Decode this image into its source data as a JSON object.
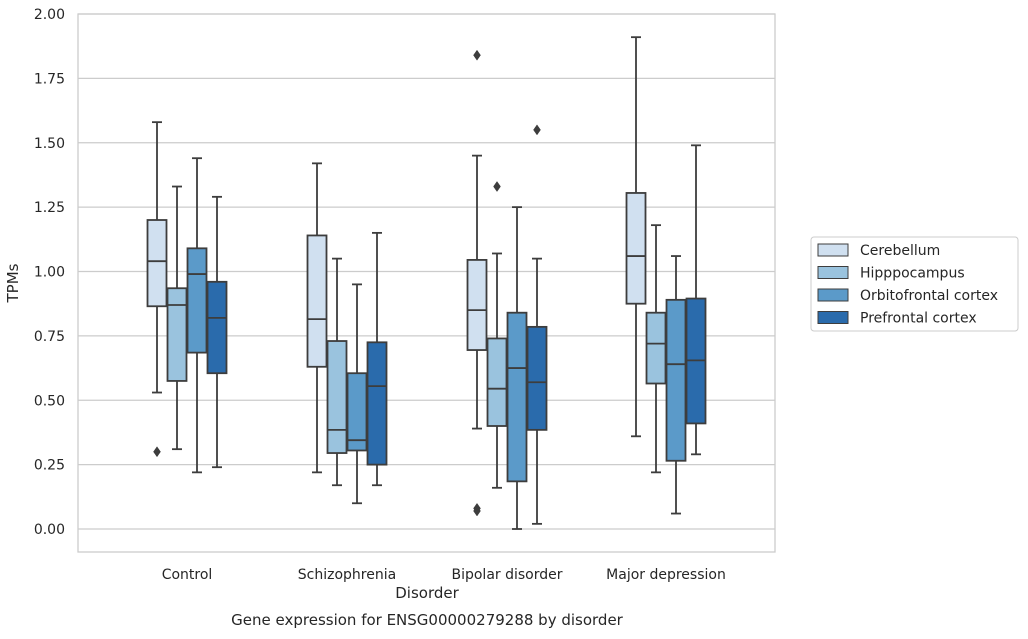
{
  "chart_data": {
    "type": "box",
    "xlabel": "Disorder",
    "ylabel": "TPMs",
    "caption": "Gene expression for ENSG00000279288 by disorder",
    "ylim": [
      -0.09,
      2.01
    ],
    "yticks": [
      0.0,
      0.25,
      0.5,
      0.75,
      1.0,
      1.25,
      1.5,
      1.75,
      2.0
    ],
    "ytick_labels": [
      "0.00",
      "0.25",
      "0.50",
      "0.75",
      "1.00",
      "1.25",
      "1.50",
      "1.75",
      "2.00"
    ],
    "grid": true,
    "legend_position": "right",
    "categories": [
      "Control",
      "Schizophrenia",
      "Bipolar disorder",
      "Major depression"
    ],
    "series": [
      {
        "name": "Cerebellum",
        "color": "#d0e0f0",
        "boxes": [
          {
            "whislo": 0.53,
            "q1": 0.865,
            "med": 1.04,
            "q3": 1.2,
            "whishi": 1.58,
            "fliers": [
              0.3
            ]
          },
          {
            "whislo": 0.22,
            "q1": 0.63,
            "med": 0.815,
            "q3": 1.14,
            "whishi": 1.42,
            "fliers": []
          },
          {
            "whislo": 0.39,
            "q1": 0.695,
            "med": 0.85,
            "q3": 1.045,
            "whishi": 1.45,
            "fliers": [
              1.84,
              0.08,
              0.07
            ]
          },
          {
            "whislo": 0.36,
            "q1": 0.875,
            "med": 1.06,
            "q3": 1.305,
            "whishi": 1.91,
            "fliers": []
          }
        ]
      },
      {
        "name": "Hipppocampus",
        "color": "#9ac3de",
        "boxes": [
          {
            "whislo": 0.31,
            "q1": 0.575,
            "med": 0.87,
            "q3": 0.935,
            "whishi": 1.33,
            "fliers": []
          },
          {
            "whislo": 0.17,
            "q1": 0.295,
            "med": 0.385,
            "q3": 0.73,
            "whishi": 1.05,
            "fliers": []
          },
          {
            "whislo": 0.16,
            "q1": 0.4,
            "med": 0.545,
            "q3": 0.74,
            "whishi": 1.07,
            "fliers": [
              1.33
            ]
          },
          {
            "whislo": 0.22,
            "q1": 0.565,
            "med": 0.72,
            "q3": 0.84,
            "whishi": 1.18,
            "fliers": []
          }
        ]
      },
      {
        "name": "Orbitofrontal cortex",
        "color": "#5b9ac9",
        "boxes": [
          {
            "whislo": 0.22,
            "q1": 0.685,
            "med": 0.99,
            "q3": 1.09,
            "whishi": 1.44,
            "fliers": []
          },
          {
            "whislo": 0.1,
            "q1": 0.305,
            "med": 0.345,
            "q3": 0.605,
            "whishi": 0.95,
            "fliers": []
          },
          {
            "whislo": 0.0,
            "q1": 0.185,
            "med": 0.625,
            "q3": 0.84,
            "whishi": 1.25,
            "fliers": []
          },
          {
            "whislo": 0.06,
            "q1": 0.265,
            "med": 0.64,
            "q3": 0.89,
            "whishi": 1.06,
            "fliers": []
          }
        ]
      },
      {
        "name": "Prefrontal cortex",
        "color": "#2a6bac",
        "boxes": [
          {
            "whislo": 0.24,
            "q1": 0.605,
            "med": 0.82,
            "q3": 0.96,
            "whishi": 1.29,
            "fliers": []
          },
          {
            "whislo": 0.17,
            "q1": 0.25,
            "med": 0.555,
            "q3": 0.725,
            "whishi": 1.15,
            "fliers": []
          },
          {
            "whislo": 0.02,
            "q1": 0.385,
            "med": 0.57,
            "q3": 0.785,
            "whishi": 1.05,
            "fliers": [
              1.55
            ]
          },
          {
            "whislo": 0.29,
            "q1": 0.41,
            "med": 0.655,
            "q3": 0.895,
            "whishi": 1.49,
            "fliers": []
          }
        ]
      }
    ]
  }
}
